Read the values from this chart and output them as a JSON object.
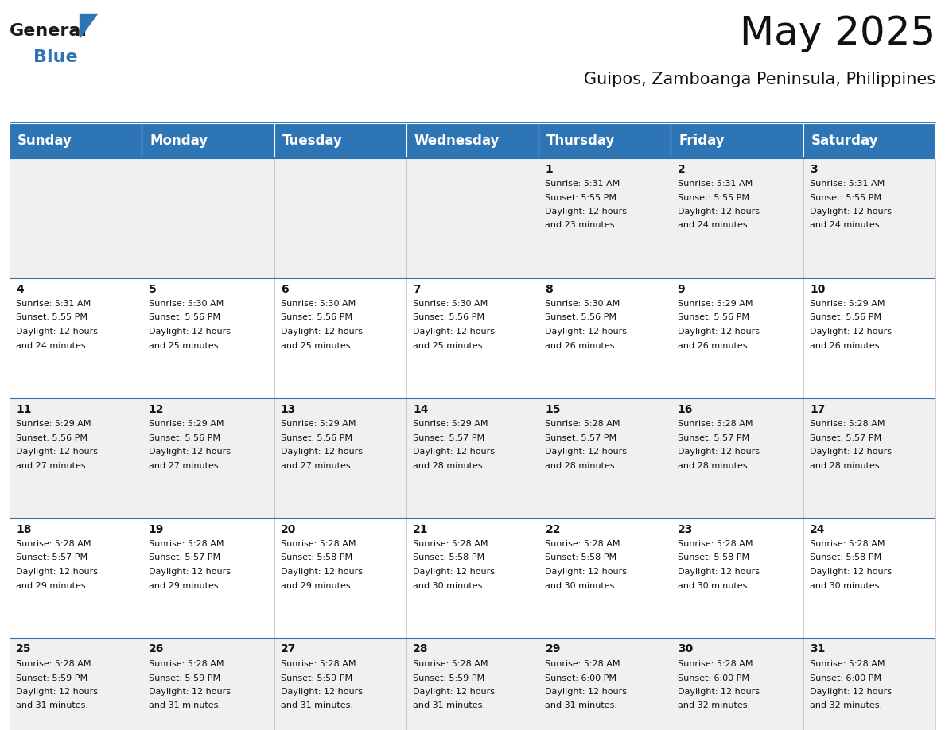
{
  "title": "May 2025",
  "subtitle": "Guipos, Zamboanga Peninsula, Philippines",
  "header_bg_color": "#2e75b6",
  "header_text_color": "#ffffff",
  "odd_row_bg": "#f0f0f0",
  "even_row_bg": "#ffffff",
  "day_names": [
    "Sunday",
    "Monday",
    "Tuesday",
    "Wednesday",
    "Thursday",
    "Friday",
    "Saturday"
  ],
  "title_fontsize": 36,
  "subtitle_fontsize": 15,
  "header_fontsize": 12,
  "cell_day_fontsize": 10,
  "cell_text_fontsize": 8,
  "weeks": [
    [
      {
        "day": "",
        "sunrise": "",
        "sunset": "",
        "daylight": ""
      },
      {
        "day": "",
        "sunrise": "",
        "sunset": "",
        "daylight": ""
      },
      {
        "day": "",
        "sunrise": "",
        "sunset": "",
        "daylight": ""
      },
      {
        "day": "",
        "sunrise": "",
        "sunset": "",
        "daylight": ""
      },
      {
        "day": "1",
        "sunrise": "5:31 AM",
        "sunset": "5:55 PM",
        "daylight": "12 hours and 23 minutes."
      },
      {
        "day": "2",
        "sunrise": "5:31 AM",
        "sunset": "5:55 PM",
        "daylight": "12 hours and 24 minutes."
      },
      {
        "day": "3",
        "sunrise": "5:31 AM",
        "sunset": "5:55 PM",
        "daylight": "12 hours and 24 minutes."
      }
    ],
    [
      {
        "day": "4",
        "sunrise": "5:31 AM",
        "sunset": "5:55 PM",
        "daylight": "12 hours and 24 minutes."
      },
      {
        "day": "5",
        "sunrise": "5:30 AM",
        "sunset": "5:56 PM",
        "daylight": "12 hours and 25 minutes."
      },
      {
        "day": "6",
        "sunrise": "5:30 AM",
        "sunset": "5:56 PM",
        "daylight": "12 hours and 25 minutes."
      },
      {
        "day": "7",
        "sunrise": "5:30 AM",
        "sunset": "5:56 PM",
        "daylight": "12 hours and 25 minutes."
      },
      {
        "day": "8",
        "sunrise": "5:30 AM",
        "sunset": "5:56 PM",
        "daylight": "12 hours and 26 minutes."
      },
      {
        "day": "9",
        "sunrise": "5:29 AM",
        "sunset": "5:56 PM",
        "daylight": "12 hours and 26 minutes."
      },
      {
        "day": "10",
        "sunrise": "5:29 AM",
        "sunset": "5:56 PM",
        "daylight": "12 hours and 26 minutes."
      }
    ],
    [
      {
        "day": "11",
        "sunrise": "5:29 AM",
        "sunset": "5:56 PM",
        "daylight": "12 hours and 27 minutes."
      },
      {
        "day": "12",
        "sunrise": "5:29 AM",
        "sunset": "5:56 PM",
        "daylight": "12 hours and 27 minutes."
      },
      {
        "day": "13",
        "sunrise": "5:29 AM",
        "sunset": "5:56 PM",
        "daylight": "12 hours and 27 minutes."
      },
      {
        "day": "14",
        "sunrise": "5:29 AM",
        "sunset": "5:57 PM",
        "daylight": "12 hours and 28 minutes."
      },
      {
        "day": "15",
        "sunrise": "5:28 AM",
        "sunset": "5:57 PM",
        "daylight": "12 hours and 28 minutes."
      },
      {
        "day": "16",
        "sunrise": "5:28 AM",
        "sunset": "5:57 PM",
        "daylight": "12 hours and 28 minutes."
      },
      {
        "day": "17",
        "sunrise": "5:28 AM",
        "sunset": "5:57 PM",
        "daylight": "12 hours and 28 minutes."
      }
    ],
    [
      {
        "day": "18",
        "sunrise": "5:28 AM",
        "sunset": "5:57 PM",
        "daylight": "12 hours and 29 minutes."
      },
      {
        "day": "19",
        "sunrise": "5:28 AM",
        "sunset": "5:57 PM",
        "daylight": "12 hours and 29 minutes."
      },
      {
        "day": "20",
        "sunrise": "5:28 AM",
        "sunset": "5:58 PM",
        "daylight": "12 hours and 29 minutes."
      },
      {
        "day": "21",
        "sunrise": "5:28 AM",
        "sunset": "5:58 PM",
        "daylight": "12 hours and 30 minutes."
      },
      {
        "day": "22",
        "sunrise": "5:28 AM",
        "sunset": "5:58 PM",
        "daylight": "12 hours and 30 minutes."
      },
      {
        "day": "23",
        "sunrise": "5:28 AM",
        "sunset": "5:58 PM",
        "daylight": "12 hours and 30 minutes."
      },
      {
        "day": "24",
        "sunrise": "5:28 AM",
        "sunset": "5:58 PM",
        "daylight": "12 hours and 30 minutes."
      }
    ],
    [
      {
        "day": "25",
        "sunrise": "5:28 AM",
        "sunset": "5:59 PM",
        "daylight": "12 hours and 31 minutes."
      },
      {
        "day": "26",
        "sunrise": "5:28 AM",
        "sunset": "5:59 PM",
        "daylight": "12 hours and 31 minutes."
      },
      {
        "day": "27",
        "sunrise": "5:28 AM",
        "sunset": "5:59 PM",
        "daylight": "12 hours and 31 minutes."
      },
      {
        "day": "28",
        "sunrise": "5:28 AM",
        "sunset": "5:59 PM",
        "daylight": "12 hours and 31 minutes."
      },
      {
        "day": "29",
        "sunrise": "5:28 AM",
        "sunset": "6:00 PM",
        "daylight": "12 hours and 31 minutes."
      },
      {
        "day": "30",
        "sunrise": "5:28 AM",
        "sunset": "6:00 PM",
        "daylight": "12 hours and 32 minutes."
      },
      {
        "day": "31",
        "sunrise": "5:28 AM",
        "sunset": "6:00 PM",
        "daylight": "12 hours and 32 minutes."
      }
    ]
  ],
  "logo_color1": "#1a1a1a",
  "logo_color2": "#2e75b6",
  "logo_triangle_color": "#2e75b6",
  "divider_color": "#2e75b6",
  "cell_border_color": "#c0c0c0"
}
